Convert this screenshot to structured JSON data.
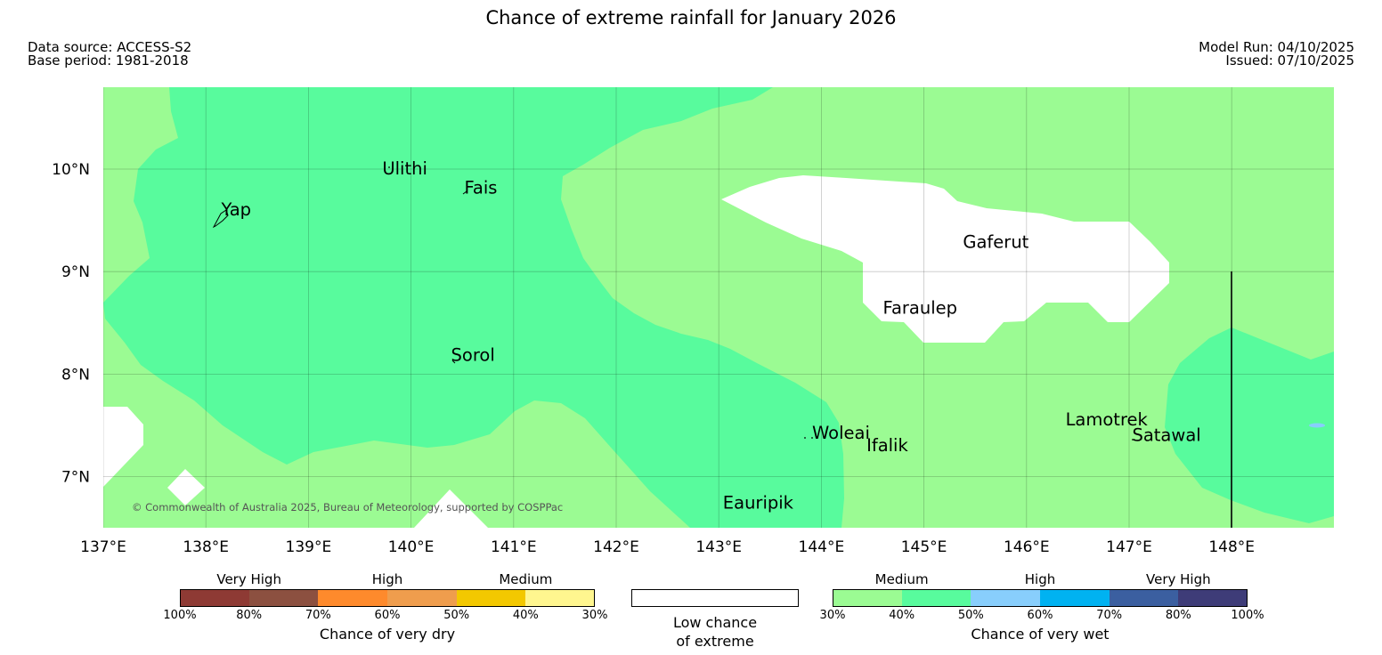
{
  "header": {
    "title": "Chance of extreme rainfall for January 2026",
    "data_source": "Data source: ACCESS-S2",
    "base_period": "Base period: 1981-2018",
    "model_run": "Model Run: 04/10/2025",
    "issued": "Issued: 07/10/2025"
  },
  "map": {
    "lon_range": [
      137,
      149
    ],
    "lat_range": [
      6.5,
      10.8
    ],
    "colors": {
      "medium_wet": "#9bfb93",
      "high_wet": "#58fb9d",
      "low_chance": "#ffffff",
      "grid": "#000000"
    },
    "lat_labels": [
      "10°N",
      "9°N",
      "8°N",
      "7°N"
    ],
    "lon_labels": [
      "137°E",
      "138°E",
      "139°E",
      "140°E",
      "141°E",
      "142°E",
      "143°E",
      "144°E",
      "145°E",
      "146°E",
      "147°E",
      "148°E"
    ],
    "places": [
      {
        "name": "Yap",
        "lon": 138.15,
        "lat": 9.55
      },
      {
        "name": "Ulithi",
        "lon": 139.72,
        "lat": 9.95
      },
      {
        "name": "Fais",
        "lon": 140.52,
        "lat": 9.76
      },
      {
        "name": "Gaferut",
        "lon": 145.38,
        "lat": 9.23
      },
      {
        "name": "Faraulep",
        "lon": 144.6,
        "lat": 8.59
      },
      {
        "name": "Sorol",
        "lon": 140.39,
        "lat": 8.13
      },
      {
        "name": "Woleai",
        "lon": 143.91,
        "lat": 7.37
      },
      {
        "name": "Ifalik",
        "lon": 144.44,
        "lat": 7.25
      },
      {
        "name": "Lamotrek",
        "lon": 146.38,
        "lat": 7.5
      },
      {
        "name": "Satawal",
        "lon": 147.03,
        "lat": 7.35
      },
      {
        "name": "Eauripik",
        "lon": 143.04,
        "lat": 6.69
      }
    ],
    "copyright": "© Commonwealth of Australia 2025, Bureau of Meteorology, supported by COSPPac"
  },
  "colorbar": {
    "dry": {
      "tiers": [
        "Very High",
        "High",
        "Medium"
      ],
      "colors": [
        "#8e3a34",
        "#8c5040",
        "#fe8a2c",
        "#ef9d4d",
        "#f3c800",
        "#fff68f"
      ],
      "ticks": [
        "100%",
        "80%",
        "70%",
        "60%",
        "50%",
        "40%",
        "30%"
      ],
      "label": "Chance of very dry"
    },
    "low": {
      "label_line1": "Low chance",
      "label_line2": "of extreme"
    },
    "wet": {
      "tiers": [
        "Medium",
        "High",
        "Very High"
      ],
      "colors": [
        "#9bfb93",
        "#58fb9d",
        "#88cefc",
        "#00b2f1",
        "#3b5fa0",
        "#3e3c78"
      ],
      "ticks": [
        "30%",
        "40%",
        "50%",
        "60%",
        "70%",
        "80%",
        "100%"
      ],
      "label": "Chance of very wet"
    }
  }
}
